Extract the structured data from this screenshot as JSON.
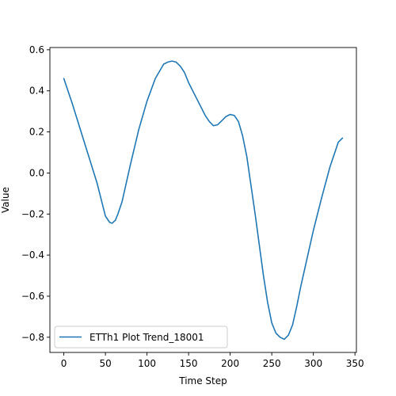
{
  "chart_data": {
    "type": "line",
    "title": "",
    "xlabel": "Time Step",
    "ylabel": "Value",
    "xlim": [
      -16.75,
      351.75
    ],
    "ylim": [
      -0.874,
      0.611
    ],
    "xticks": [
      0,
      50,
      100,
      150,
      200,
      250,
      300,
      350
    ],
    "yticks": [
      -0.8,
      -0.6,
      -0.4,
      -0.2,
      0.0,
      0.2,
      0.4,
      0.6
    ],
    "xtick_labels": [
      "0",
      "50",
      "100",
      "150",
      "200",
      "250",
      "300",
      "350"
    ],
    "ytick_labels": [
      "−0.8",
      "−0.6",
      "−0.4",
      "−0.2",
      "0.0",
      "0.2",
      "0.4",
      "0.6"
    ],
    "grid": false,
    "legend_position": "lower-left",
    "series": [
      {
        "name": "ETTh1 Plot Trend_18001",
        "color": "#1f77b4",
        "x": [
          0,
          10,
          20,
          30,
          40,
          45,
          50,
          55,
          58,
          62,
          65,
          70,
          75,
          80,
          90,
          100,
          110,
          120,
          125,
          130,
          135,
          140,
          145,
          150,
          160,
          170,
          175,
          180,
          185,
          190,
          195,
          200,
          205,
          210,
          215,
          220,
          225,
          230,
          235,
          240,
          245,
          250,
          255,
          260,
          265,
          270,
          275,
          280,
          285,
          290,
          300,
          310,
          320,
          330,
          335
        ],
        "y": [
          0.46,
          0.34,
          0.21,
          0.08,
          -0.05,
          -0.13,
          -0.21,
          -0.24,
          -0.245,
          -0.23,
          -0.2,
          -0.14,
          -0.05,
          0.04,
          0.21,
          0.35,
          0.46,
          0.53,
          0.54,
          0.545,
          0.54,
          0.52,
          0.49,
          0.44,
          0.36,
          0.28,
          0.25,
          0.23,
          0.235,
          0.255,
          0.275,
          0.285,
          0.28,
          0.25,
          0.18,
          0.08,
          -0.06,
          -0.2,
          -0.35,
          -0.5,
          -0.63,
          -0.73,
          -0.78,
          -0.8,
          -0.81,
          -0.79,
          -0.74,
          -0.65,
          -0.55,
          -0.46,
          -0.28,
          -0.12,
          0.03,
          0.15,
          0.17
        ]
      }
    ]
  }
}
